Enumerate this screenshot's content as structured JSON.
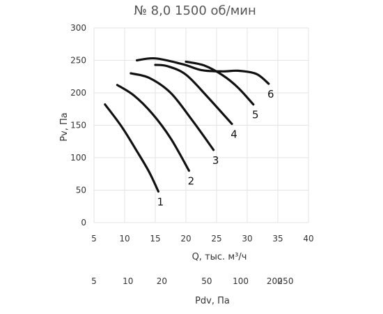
{
  "chart_data": {
    "type": "line",
    "title": "№ 8,0 1500 об/мин",
    "xlabel": "Q, тыс. м³/ч",
    "ylabel": "Pv, Па",
    "xlim": [
      5,
      40
    ],
    "ylim": [
      0,
      300
    ],
    "x_ticks": [
      5,
      10,
      15,
      20,
      25,
      30,
      35,
      40
    ],
    "y_ticks": [
      0,
      50,
      100,
      150,
      200,
      250,
      300
    ],
    "grid": true,
    "secondary_axis": {
      "label": "Pdv, Па",
      "ticks": [
        "5",
        "10",
        "20",
        "50",
        "100",
        "200",
        "250"
      ]
    },
    "series": [
      {
        "name": "1",
        "color": "#111111",
        "x": [
          6.8,
          9.5,
          12.0,
          14.0,
          15.5
        ],
        "y": [
          182,
          148,
          110,
          78,
          48
        ]
      },
      {
        "name": "2",
        "color": "#111111",
        "x": [
          8.8,
          11.5,
          14.5,
          17.5,
          20.5
        ],
        "y": [
          212,
          196,
          168,
          130,
          80
        ]
      },
      {
        "name": "3",
        "color": "#111111",
        "x": [
          11.0,
          14.0,
          17.5,
          21.0,
          24.5
        ],
        "y": [
          230,
          223,
          200,
          158,
          112
        ]
      },
      {
        "name": "4",
        "color": "#111111",
        "x": [
          15.0,
          17.0,
          20.0,
          23.5,
          27.5
        ],
        "y": [
          243,
          241,
          228,
          194,
          152
        ]
      },
      {
        "name": "5",
        "color": "#111111",
        "x": [
          20.0,
          23.0,
          26.0,
          28.5,
          31.0
        ],
        "y": [
          248,
          242,
          227,
          208,
          182
        ]
      },
      {
        "name": "6",
        "color": "#111111",
        "x": [
          12.0,
          15.0,
          19.5,
          22.5,
          26.0,
          28.5,
          31.5,
          33.5
        ],
        "y": [
          250,
          253,
          244,
          235,
          233,
          234,
          229,
          214
        ]
      }
    ]
  }
}
